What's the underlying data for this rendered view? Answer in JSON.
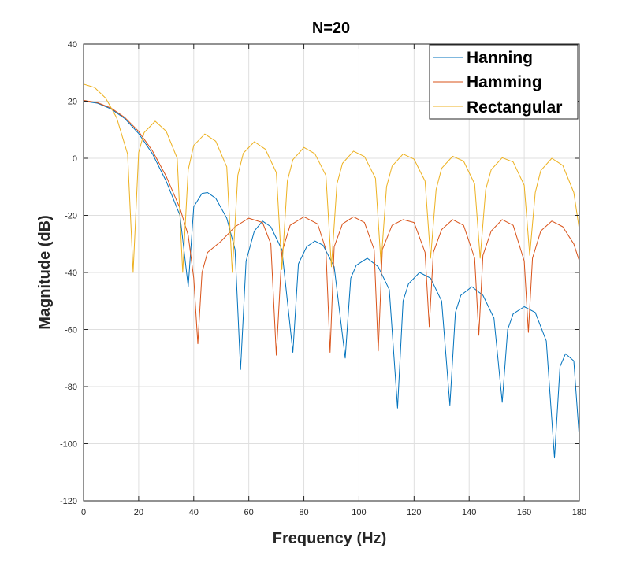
{
  "chart_data": {
    "type": "line",
    "title": "N=20",
    "xlabel": "Frequency (Hz)",
    "ylabel": "Magnitude (dB)",
    "xlim": [
      0,
      180
    ],
    "ylim": [
      -120,
      40
    ],
    "x_ticks": [
      0,
      20,
      40,
      60,
      80,
      100,
      120,
      140,
      160,
      180
    ],
    "y_ticks": [
      -120,
      -100,
      -80,
      -60,
      -40,
      -20,
      0,
      20,
      40
    ],
    "grid": true,
    "legend_position": "top-right",
    "series": [
      {
        "name": "Hanning",
        "color": "#0072BD",
        "x": [
          0,
          5,
          10,
          15,
          20,
          25,
          30,
          35,
          38,
          40,
          43,
          45,
          48,
          52,
          55,
          57,
          59,
          62,
          65,
          68,
          72,
          76,
          78,
          81,
          84,
          87,
          91,
          95,
          97,
          99,
          103,
          107,
          111,
          114,
          116,
          118,
          122,
          126,
          130,
          133,
          135,
          137,
          141,
          145,
          149,
          152,
          154,
          156,
          160,
          164,
          168,
          171,
          173,
          175,
          178,
          180
        ],
        "y": [
          20,
          19.3,
          17.3,
          13.9,
          8.7,
          1.6,
          -8,
          -20,
          -45,
          -17,
          -12.3,
          -12,
          -14,
          -21,
          -32,
          -74,
          -36,
          -25.5,
          -22,
          -24,
          -32,
          -68,
          -37,
          -31,
          -29,
          -30.5,
          -38,
          -70,
          -42,
          -37.5,
          -35,
          -38,
          -46,
          -87.5,
          -50,
          -44,
          -40,
          -42,
          -50,
          -86.5,
          -54,
          -48,
          -45,
          -48,
          -56,
          -85.5,
          -60,
          -54.5,
          -52,
          -54,
          -64,
          -105,
          -73,
          -68.5,
          -71,
          -98
        ]
      },
      {
        "name": "Hamming",
        "color": "#D95319",
        "x": [
          0,
          5,
          10,
          15,
          20,
          25,
          30,
          35,
          38,
          40,
          41.5,
          43,
          45,
          50,
          55,
          60,
          65,
          68,
          70,
          72,
          75,
          80,
          85,
          88,
          89.5,
          91,
          94,
          98,
          102,
          105.5,
          107,
          108.5,
          112,
          116,
          120,
          124,
          125.5,
          127,
          130,
          134,
          138,
          142,
          143.5,
          145,
          148,
          152,
          156,
          160,
          161.5,
          163,
          166,
          170,
          174,
          178,
          180
        ],
        "y": [
          20.3,
          19.5,
          17.6,
          14.3,
          9.4,
          2.6,
          -6.3,
          -17.5,
          -27,
          -42,
          -65,
          -40,
          -33,
          -29,
          -24,
          -21,
          -22.5,
          -30,
          -69,
          -33,
          -23.5,
          -20.5,
          -23,
          -32,
          -68,
          -31,
          -23,
          -20.5,
          -22.5,
          -32,
          -67.5,
          -32,
          -23.5,
          -21.5,
          -22.5,
          -33,
          -59,
          -33,
          -25,
          -21.5,
          -23.5,
          -35,
          -62,
          -34,
          -25.5,
          -21.5,
          -23.5,
          -36,
          -61,
          -35,
          -25.5,
          -22,
          -24,
          -30,
          -36
        ]
      },
      {
        "name": "Rectangular",
        "color": "#EDB120",
        "x": [
          0,
          4,
          8,
          12,
          16,
          18,
          20,
          22,
          26,
          30,
          34,
          36,
          38,
          40,
          44,
          48,
          52,
          54,
          56,
          58,
          62,
          66,
          70,
          72,
          74,
          76,
          80,
          84,
          88,
          90,
          92,
          94,
          98,
          102,
          106,
          108,
          110,
          112,
          116,
          120,
          124,
          126,
          128,
          130,
          134,
          138,
          142,
          144,
          146,
          148,
          152,
          156,
          160,
          162,
          164,
          166,
          170,
          174,
          178,
          180
        ],
        "y": [
          26,
          24.8,
          21.1,
          14.3,
          1.5,
          -40,
          2,
          9,
          13,
          9.5,
          0,
          -40,
          -4,
          4.5,
          8.5,
          6,
          -3,
          -40,
          -6,
          1.8,
          5.8,
          3.2,
          -5,
          -39,
          -8,
          -0.5,
          3.8,
          1.6,
          -6,
          -38,
          -9,
          -1.8,
          2.5,
          0.6,
          -7,
          -37,
          -10,
          -2.8,
          1.5,
          -0.3,
          -8,
          -35,
          -11,
          -3.5,
          0.7,
          -1,
          -9,
          -35,
          -11,
          -4,
          0.2,
          -1.3,
          -9.5,
          -34,
          -12,
          -4.3,
          0,
          -2.5,
          -12,
          -25
        ]
      }
    ]
  }
}
